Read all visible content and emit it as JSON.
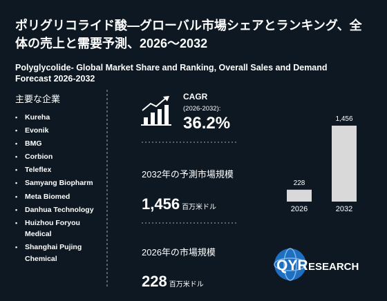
{
  "header": {
    "title": "ポリグリコライド酸—グローバル市場シェアとランキング、全体の売上と需要予測、2026～2032",
    "subtitle": "Polyglycolide- Global Market Share and Ranking, Overall Sales and Demand Forecast 2026-2032"
  },
  "companies": {
    "heading": "主要な企業",
    "items": [
      "Kureha",
      "Evonik",
      "BMG",
      "Corbion",
      "Teleflex",
      "Samyang Biopharm",
      "Meta Biomed",
      "Danhua Technology",
      "Huizhou Foryou Medical",
      "Shanghai Pujing Chemical"
    ]
  },
  "cagr": {
    "label": "CAGR",
    "period": "(2026-2032):",
    "value": "36.2%"
  },
  "forecast": {
    "label": "2032年の予測市場規模",
    "value": "1,456",
    "unit": "百万米ドル"
  },
  "current": {
    "label": "2026年の市場規模",
    "value": "228",
    "unit": "百万米ドル"
  },
  "chart_data": {
    "type": "bar",
    "categories": [
      "2026",
      "2032"
    ],
    "values": [
      228,
      1456
    ],
    "value_labels": [
      "228",
      "1,456"
    ],
    "color": "#d9d9d9"
  },
  "logo": {
    "mark": "QYR",
    "rest": "ESEARCH"
  }
}
